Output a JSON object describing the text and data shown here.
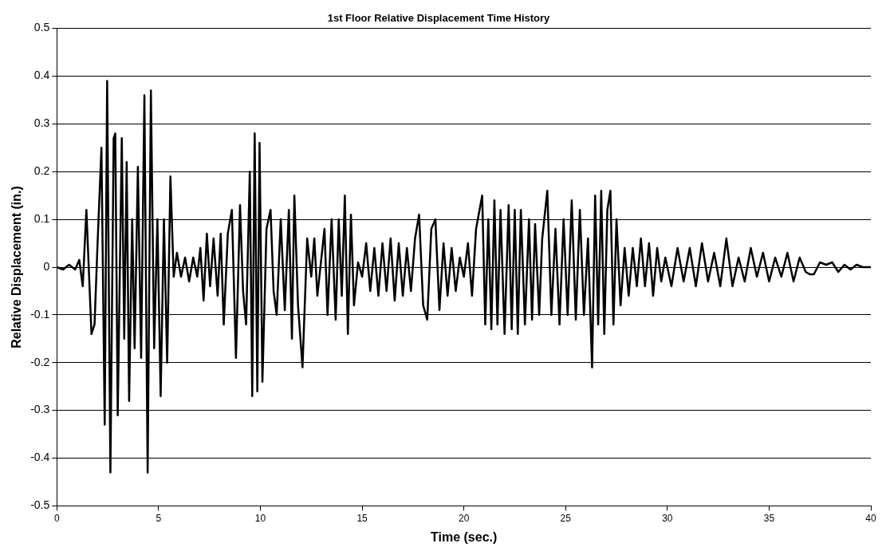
{
  "chart_data": {
    "type": "line",
    "title": "1st Floor Relative Displacement Time History",
    "xlabel": "Time (sec.)",
    "ylabel": "Relative Displacement (in.)",
    "x": [
      0,
      0.3,
      0.6,
      0.9,
      1.1,
      1.27,
      1.45,
      1.7,
      1.85,
      2.0,
      2.19,
      2.35,
      2.47,
      2.63,
      2.79,
      2.87,
      2.99,
      3.19,
      3.31,
      3.43,
      3.55,
      3.7,
      3.82,
      3.98,
      4.14,
      4.3,
      4.46,
      4.62,
      4.78,
      4.94,
      5.1,
      5.26,
      5.42,
      5.58,
      5.74,
      5.9,
      6.1,
      6.3,
      6.5,
      6.7,
      6.9,
      7.05,
      7.21,
      7.37,
      7.53,
      7.7,
      7.9,
      8.05,
      8.2,
      8.4,
      8.6,
      8.8,
      9.0,
      9.15,
      9.3,
      9.48,
      9.6,
      9.72,
      9.85,
      9.96,
      10.1,
      10.3,
      10.5,
      10.65,
      10.8,
      11.0,
      11.2,
      11.4,
      11.55,
      11.67,
      11.85,
      12.07,
      12.3,
      12.5,
      12.65,
      12.8,
      13.0,
      13.15,
      13.3,
      13.5,
      13.7,
      13.85,
      14.0,
      14.15,
      14.3,
      14.45,
      14.6,
      14.8,
      15.0,
      15.2,
      15.4,
      15.6,
      15.8,
      16.0,
      16.2,
      16.4,
      16.6,
      16.8,
      17.0,
      17.2,
      17.4,
      17.6,
      17.8,
      18.0,
      18.2,
      18.4,
      18.6,
      18.8,
      19.0,
      19.2,
      19.4,
      19.6,
      19.8,
      20.0,
      20.2,
      20.4,
      20.6,
      20.9,
      21.05,
      21.2,
      21.35,
      21.5,
      21.65,
      21.8,
      22.0,
      22.2,
      22.35,
      22.5,
      22.65,
      22.8,
      23.0,
      23.2,
      23.35,
      23.5,
      23.7,
      23.85,
      24.1,
      24.3,
      24.5,
      24.7,
      24.9,
      25.1,
      25.3,
      25.5,
      25.7,
      25.9,
      26.1,
      26.3,
      26.45,
      26.6,
      26.75,
      26.9,
      27.05,
      27.2,
      27.35,
      27.5,
      27.7,
      27.9,
      28.1,
      28.3,
      28.5,
      28.7,
      28.9,
      29.1,
      29.3,
      29.5,
      29.7,
      29.9,
      30.2,
      30.5,
      30.8,
      31.1,
      31.4,
      31.7,
      32.0,
      32.3,
      32.6,
      32.9,
      33.2,
      33.5,
      33.8,
      34.1,
      34.4,
      34.7,
      35.0,
      35.3,
      35.6,
      35.9,
      36.2,
      36.5,
      36.8,
      37.0,
      37.2,
      37.5,
      37.8,
      38.1,
      38.4,
      38.7,
      39.0,
      39.3,
      39.6,
      40
    ],
    "series": [
      {
        "color": "#000000",
        "values": [
          0,
          -0.005,
          0.005,
          -0.005,
          0.015,
          -0.04,
          0.12,
          -0.14,
          -0.12,
          0.05,
          0.25,
          -0.33,
          0.39,
          -0.43,
          0.27,
          0.28,
          -0.31,
          0.27,
          -0.15,
          0.22,
          -0.28,
          0.1,
          -0.17,
          0.21,
          -0.19,
          0.36,
          -0.43,
          0.37,
          -0.17,
          0.1,
          -0.27,
          0.1,
          -0.2,
          0.19,
          -0.02,
          0.03,
          -0.02,
          0.02,
          -0.03,
          0.02,
          -0.02,
          0.04,
          -0.07,
          0.07,
          -0.04,
          0.06,
          -0.06,
          0.07,
          -0.12,
          0.07,
          0.12,
          -0.19,
          0.13,
          -0.05,
          -0.12,
          0.2,
          -0.27,
          0.28,
          -0.26,
          0.26,
          -0.24,
          0.08,
          0.12,
          -0.05,
          -0.1,
          0.1,
          -0.09,
          0.12,
          -0.15,
          0.15,
          -0.08,
          -0.21,
          0.06,
          -0.02,
          0.06,
          -0.06,
          0.02,
          0.08,
          -0.1,
          0.1,
          -0.11,
          0.1,
          -0.06,
          0.15,
          -0.14,
          0.11,
          -0.08,
          0.01,
          -0.02,
          0.05,
          -0.05,
          0.04,
          -0.06,
          0.05,
          -0.05,
          0.06,
          -0.07,
          0.05,
          -0.06,
          0.04,
          -0.05,
          0.06,
          0.11,
          -0.08,
          -0.11,
          0.08,
          0.1,
          -0.09,
          0.05,
          -0.06,
          0.04,
          -0.05,
          0.02,
          -0.02,
          0.05,
          -0.06,
          0.08,
          0.15,
          -0.12,
          0.1,
          -0.13,
          0.14,
          -0.12,
          0.12,
          -0.14,
          0.13,
          -0.13,
          0.12,
          -0.14,
          0.12,
          -0.12,
          0.1,
          -0.11,
          0.09,
          -0.1,
          0.06,
          0.16,
          -0.1,
          0.08,
          -0.12,
          0.1,
          -0.1,
          0.14,
          -0.11,
          0.12,
          -0.1,
          0.06,
          -0.21,
          0.15,
          -0.12,
          0.16,
          -0.14,
          0.12,
          0.16,
          -0.12,
          0.1,
          -0.08,
          0.04,
          -0.06,
          0.04,
          -0.04,
          0.06,
          -0.04,
          0.05,
          -0.06,
          0.04,
          -0.03,
          0.02,
          -0.04,
          0.04,
          -0.03,
          0.04,
          -0.04,
          0.05,
          -0.03,
          0.03,
          -0.04,
          0.06,
          -0.04,
          0.02,
          -0.03,
          0.04,
          -0.02,
          0.03,
          -0.03,
          0.02,
          -0.02,
          0.03,
          -0.03,
          0.02,
          -0.01,
          -0.015,
          -0.015,
          0.01,
          0.005,
          0.01,
          -0.01,
          0.005,
          -0.005,
          0.005,
          0,
          0
        ]
      }
    ],
    "xlim": [
      0,
      40
    ],
    "xticks": [
      0,
      5,
      10,
      15,
      20,
      25,
      30,
      35,
      40
    ],
    "ylim": [
      -0.5,
      0.5
    ],
    "yticks": [
      -0.5,
      -0.4,
      -0.3,
      -0.2,
      -0.1,
      0,
      0.1,
      0.2,
      0.3,
      0.4,
      0.5
    ],
    "grid": "y",
    "legend": false,
    "marker": "none",
    "line_style": "solid"
  }
}
